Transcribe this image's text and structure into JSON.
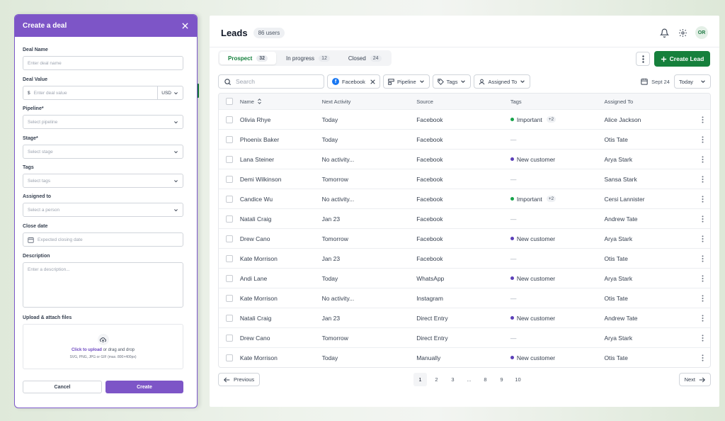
{
  "leads": {
    "title": "Leads",
    "users_badge": "86 users",
    "avatar_initials": "OR",
    "tabs": [
      {
        "label": "Prospect",
        "count": "32"
      },
      {
        "label": "In progress",
        "count": "12"
      },
      {
        "label": "Closed",
        "count": "24"
      }
    ],
    "create_lead_label": "Create Lead",
    "search_placeholder": "Search",
    "filters": {
      "facebook": "Facebook",
      "pipeline": "Pipeline",
      "tags": "Tags",
      "assigned_to": "Assigned To"
    },
    "date_label": "Sept 24",
    "date_range": "Today",
    "columns": {
      "name": "Name",
      "next_activity": "Next Activity",
      "source": "Source",
      "tags": "Tags",
      "assigned_to": "Assigned To"
    },
    "rows": [
      {
        "name": "Olivia Rhye",
        "activity": "Today",
        "source": "Facebook",
        "tag": "Important",
        "tag_color": "#16a34a",
        "extra": "+2",
        "assigned": "Alice Jackson"
      },
      {
        "name": "Phoenix Baker",
        "activity": "Today",
        "source": "Facebook",
        "tag": "—",
        "tag_color": "",
        "extra": "",
        "assigned": "Otis Tate"
      },
      {
        "name": "Lana Steiner",
        "activity": "No activity...",
        "source": "Facebook",
        "tag": "New customer",
        "tag_color": "#5b3fb8",
        "extra": "",
        "assigned": "Arya Stark"
      },
      {
        "name": "Demi Wilkinson",
        "activity": "Tomorrow",
        "source": "Facebook",
        "tag": "—",
        "tag_color": "",
        "extra": "",
        "assigned": "Sansa Stark"
      },
      {
        "name": "Candice Wu",
        "activity": "No activity...",
        "source": "Facebook",
        "tag": "Important",
        "tag_color": "#16a34a",
        "extra": "+2",
        "assigned": "Cersi Lannister"
      },
      {
        "name": "Natali Craig",
        "activity": "Jan 23",
        "source": "Facebook",
        "tag": "—",
        "tag_color": "",
        "extra": "",
        "assigned": "Andrew Tate"
      },
      {
        "name": "Drew Cano",
        "activity": "Tomorrow",
        "source": "Facebook",
        "tag": "New customer",
        "tag_color": "#5b3fb8",
        "extra": "",
        "assigned": "Arya Stark"
      },
      {
        "name": "Kate Morrison",
        "activity": "Jan 23",
        "source": "Facebook",
        "tag": "—",
        "tag_color": "",
        "extra": "",
        "assigned": "Otis Tate"
      },
      {
        "name": "Andi Lane",
        "activity": "Today",
        "source": "WhatsApp",
        "tag": "New customer",
        "tag_color": "#5b3fb8",
        "extra": "",
        "assigned": "Arya Stark"
      },
      {
        "name": "Kate Morrison",
        "activity": "No activity...",
        "source": "Instagram",
        "tag": "—",
        "tag_color": "",
        "extra": "",
        "assigned": "Otis Tate"
      },
      {
        "name": "Natali Craig",
        "activity": "Jan 23",
        "source": "Direct Entry",
        "tag": "New customer",
        "tag_color": "#5b3fb8",
        "extra": "",
        "assigned": "Andrew Tate"
      },
      {
        "name": "Drew Cano",
        "activity": "Tomorrow",
        "source": "Direct Entry",
        "tag": "—",
        "tag_color": "",
        "extra": "",
        "assigned": "Arya Stark"
      },
      {
        "name": "Kate Morrison",
        "activity": "Today",
        "source": "Manually",
        "tag": "New customer",
        "tag_color": "#5b3fb8",
        "extra": "",
        "assigned": "Otis Tate"
      }
    ],
    "pagination": {
      "previous": "Previous",
      "next": "Next",
      "pages": [
        "1",
        "2",
        "3",
        "...",
        "8",
        "9",
        "10"
      ],
      "current": "1"
    }
  },
  "deal_dialog": {
    "title": "Create a deal",
    "deal_name_label": "Deal Name",
    "deal_name_placeholder": "Enter deal name",
    "deal_value_label": "Deal Value",
    "currency_symbol": "$",
    "deal_value_placeholder": "Enter deal value",
    "currency": "USD",
    "pipeline_label": "Pipeline*",
    "pipeline_placeholder": "Select pipeline",
    "stage_label": "Stage*",
    "stage_placeholder": "Select stage",
    "tags_label": "Tags",
    "tags_placeholder": "Select tags",
    "assigned_label": "Assigned to",
    "assigned_placeholder": "Select a person",
    "close_date_label": "Close date",
    "close_date_placeholder": "Expected closing date",
    "description_label": "Description",
    "description_placeholder": "Enter a description...",
    "upload_label": "Upload & attach files",
    "upload_link": "Click to upload",
    "upload_text": " or drag and drop",
    "upload_hint": "SVG, PNG, JPG or GIF (max. 800×400px)",
    "cancel_label": "Cancel",
    "create_label": "Create"
  },
  "colors": {
    "accent_purple": "#7d55c7",
    "accent_green": "#16803c"
  }
}
